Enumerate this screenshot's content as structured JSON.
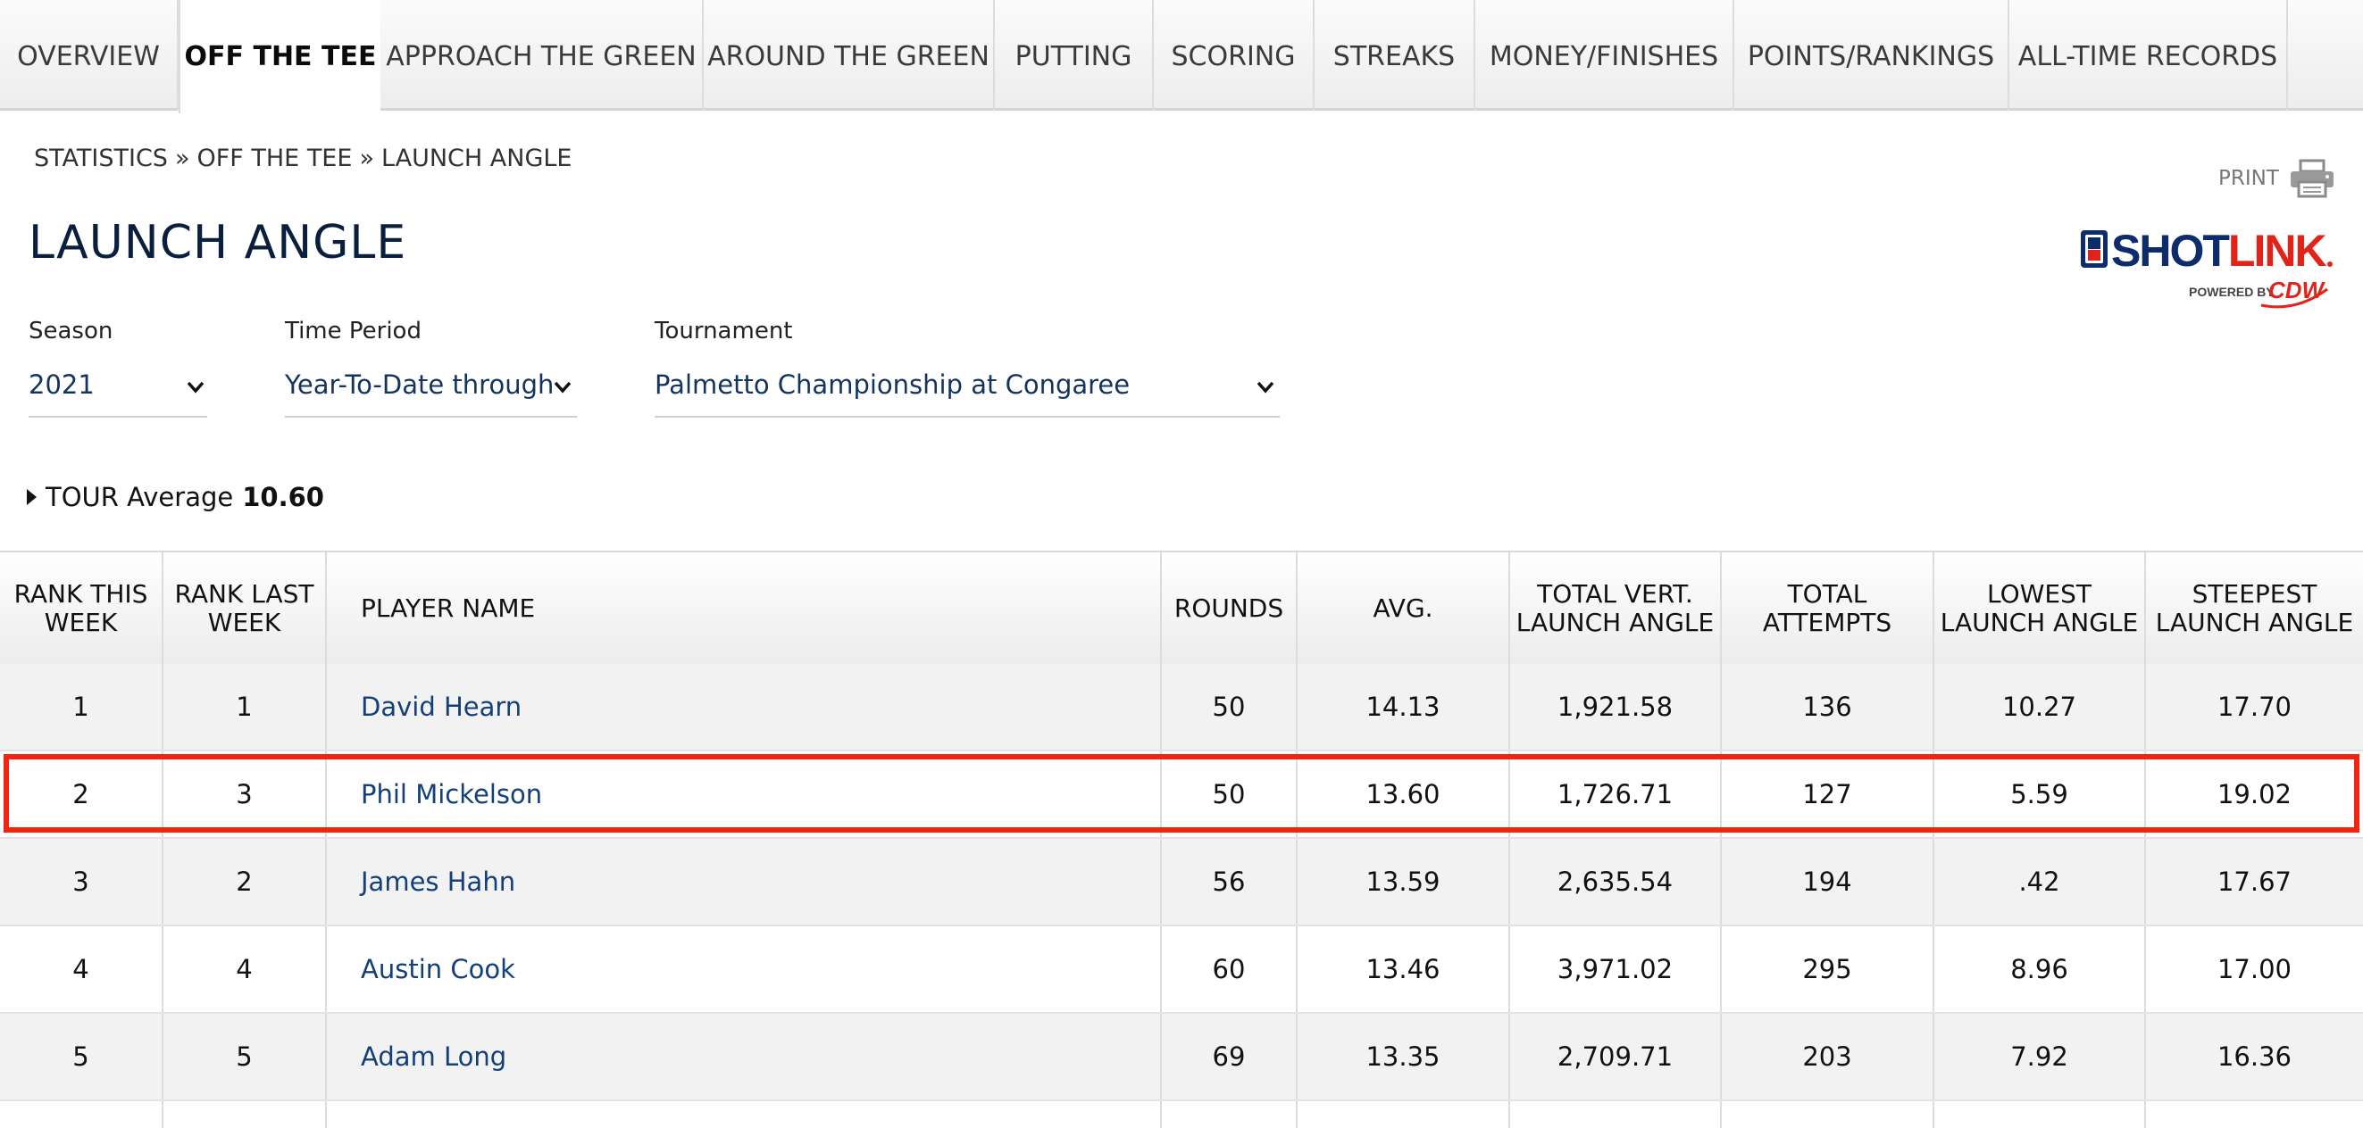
{
  "tabs": [
    {
      "label": "OVERVIEW"
    },
    {
      "label": "OFF THE TEE"
    },
    {
      "label": "APPROACH THE GREEN"
    },
    {
      "label": "AROUND THE GREEN"
    },
    {
      "label": "PUTTING"
    },
    {
      "label": "SCORING"
    },
    {
      "label": "STREAKS"
    },
    {
      "label": "MONEY/FINISHES"
    },
    {
      "label": "POINTS/RANKINGS"
    },
    {
      "label": "ALL-TIME RECORDS"
    }
  ],
  "active_tab": "OFF THE TEE",
  "breadcrumb": [
    "STATISTICS",
    "OFF THE TEE",
    "LAUNCH ANGLE"
  ],
  "breadcrumb_separator": "»",
  "page_title": "LAUNCH ANGLE",
  "print_label": "PRINT",
  "logo": {
    "text_main": "SHOTLINK",
    "text_sub": "POWERED BY",
    "text_brand": "CDW",
    "colors": {
      "blue": "#0d2c6c",
      "red": "#e2231a"
    }
  },
  "filters": {
    "season": {
      "label": "Season",
      "value": "2021"
    },
    "time_period": {
      "label": "Time Period",
      "value": "Year-To-Date through"
    },
    "tournament": {
      "label": "Tournament",
      "value": "Palmetto Championship at Congaree"
    }
  },
  "tour_average": {
    "label": "TOUR Average",
    "value": "10.60"
  },
  "table": {
    "headers": {
      "rank_this_week": "RANK THIS WEEK",
      "rank_last_week": "RANK LAST WEEK",
      "player_name": "PLAYER NAME",
      "rounds": "ROUNDS",
      "avg": "AVG.",
      "total_vert": "TOTAL VERT. LAUNCH ANGLE",
      "total_attempts": "TOTAL ATTEMPTS",
      "lowest": "LOWEST LAUNCH ANGLE",
      "steepest": "STEEPEST LAUNCH ANGLE"
    },
    "rows": [
      {
        "rank": "1",
        "last": "1",
        "name": "David Hearn",
        "rounds": "50",
        "avg": "14.13",
        "total": "1,921.58",
        "attempts": "136",
        "lowest": "10.27",
        "steepest": "17.70"
      },
      {
        "rank": "2",
        "last": "3",
        "name": "Phil Mickelson",
        "rounds": "50",
        "avg": "13.60",
        "total": "1,726.71",
        "attempts": "127",
        "lowest": "5.59",
        "steepest": "19.02"
      },
      {
        "rank": "3",
        "last": "2",
        "name": "James Hahn",
        "rounds": "56",
        "avg": "13.59",
        "total": "2,635.54",
        "attempts": "194",
        "lowest": ".42",
        "steepest": "17.67"
      },
      {
        "rank": "4",
        "last": "4",
        "name": "Austin Cook",
        "rounds": "60",
        "avg": "13.46",
        "total": "3,971.02",
        "attempts": "295",
        "lowest": "8.96",
        "steepest": "17.00"
      },
      {
        "rank": "5",
        "last": "5",
        "name": "Adam Long",
        "rounds": "69",
        "avg": "13.35",
        "total": "2,709.71",
        "attempts": "203",
        "lowest": "7.92",
        "steepest": "16.36"
      }
    ],
    "highlighted_player": "Phil Mickelson",
    "highlight_color": "#f2230f"
  },
  "colors": {
    "link": "#14407a",
    "title": "#0a1e3d",
    "select_text": "#13345e"
  }
}
